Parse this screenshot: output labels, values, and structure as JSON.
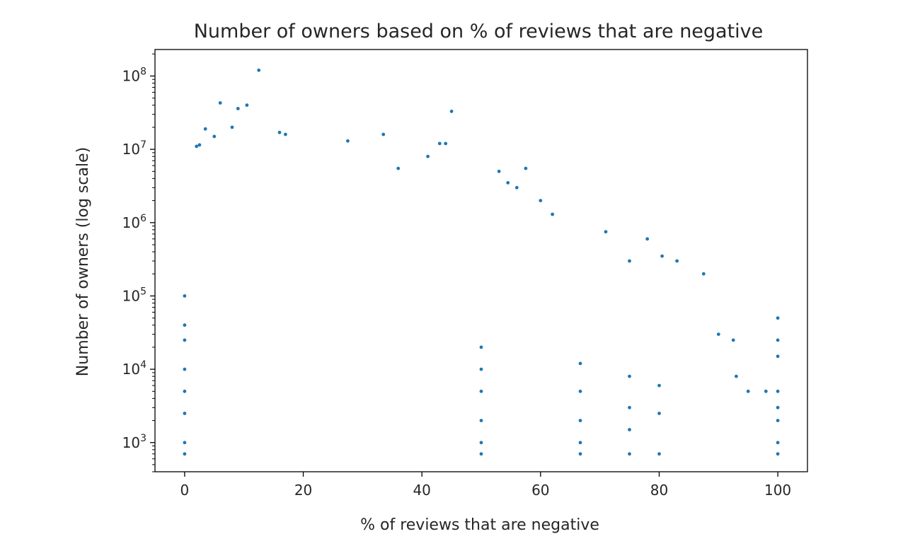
{
  "chart_data": {
    "type": "scatter",
    "title": "Number of owners based on % of reviews that are negative",
    "xlabel": "% of reviews that are negative",
    "ylabel": "Number of owners (log scale)",
    "xlim": [
      -5,
      105
    ],
    "ylim": [
      400,
      230000000
    ],
    "yscale": "log",
    "grid": false,
    "legend": "none",
    "color": "#1f77b4",
    "x_ticks": [
      {
        "value": 0,
        "label": "0"
      },
      {
        "value": 20,
        "label": "20"
      },
      {
        "value": 40,
        "label": "40"
      },
      {
        "value": 60,
        "label": "60"
      },
      {
        "value": 80,
        "label": "80"
      },
      {
        "value": 100,
        "label": "100"
      }
    ],
    "y_ticks": [
      {
        "value": 1000,
        "base": "10",
        "exp": "3"
      },
      {
        "value": 10000,
        "base": "10",
        "exp": "4"
      },
      {
        "value": 100000,
        "base": "10",
        "exp": "5"
      },
      {
        "value": 1000000,
        "base": "10",
        "exp": "6"
      },
      {
        "value": 10000000,
        "base": "10",
        "exp": "7"
      },
      {
        "value": 100000000,
        "base": "10",
        "exp": "8"
      }
    ],
    "points": [
      [
        12.5,
        120000000
      ],
      [
        6,
        43000000
      ],
      [
        9,
        36000000
      ],
      [
        10.5,
        40000000
      ],
      [
        45,
        33000000
      ],
      [
        8,
        20000000
      ],
      [
        3.5,
        19000000
      ],
      [
        5,
        15000000
      ],
      [
        2,
        11000000
      ],
      [
        2.5,
        11500000
      ],
      [
        16,
        17000000
      ],
      [
        17,
        16000000
      ],
      [
        33.5,
        16000000
      ],
      [
        27.5,
        13000000
      ],
      [
        43,
        12000000
      ],
      [
        44,
        12000000
      ],
      [
        41,
        8000000
      ],
      [
        36,
        5500000
      ],
      [
        53,
        5000000
      ],
      [
        54.5,
        3500000
      ],
      [
        56,
        3000000
      ],
      [
        57.5,
        5500000
      ],
      [
        60,
        2000000
      ],
      [
        62,
        1300000
      ],
      [
        71,
        750000
      ],
      [
        78,
        600000
      ],
      [
        80.5,
        350000
      ],
      [
        83,
        300000
      ],
      [
        87.5,
        200000
      ],
      [
        75,
        300000
      ],
      [
        90,
        30000
      ],
      [
        92.5,
        25000
      ],
      [
        93,
        8000
      ],
      [
        95,
        5000
      ],
      [
        98,
        5000
      ],
      [
        100,
        50000
      ],
      [
        100,
        25000
      ],
      [
        100,
        15000
      ],
      [
        100,
        5000
      ],
      [
        100,
        3000
      ],
      [
        100,
        2000
      ],
      [
        100,
        1000
      ],
      [
        100,
        700
      ],
      [
        0,
        100000
      ],
      [
        0,
        40000
      ],
      [
        0,
        25000
      ],
      [
        0,
        10000
      ],
      [
        0,
        5000
      ],
      [
        0,
        2500
      ],
      [
        0,
        1000
      ],
      [
        0,
        700
      ],
      [
        50,
        20000
      ],
      [
        50,
        10000
      ],
      [
        50,
        5000
      ],
      [
        50,
        2000
      ],
      [
        50,
        1000
      ],
      [
        50,
        700
      ],
      [
        66.7,
        12000
      ],
      [
        66.7,
        5000
      ],
      [
        66.7,
        2000
      ],
      [
        66.7,
        1000
      ],
      [
        66.7,
        700
      ],
      [
        75,
        8000
      ],
      [
        75,
        3000
      ],
      [
        75,
        1500
      ],
      [
        75,
        700
      ],
      [
        80,
        6000
      ],
      [
        80,
        2500
      ],
      [
        80,
        700
      ]
    ]
  }
}
